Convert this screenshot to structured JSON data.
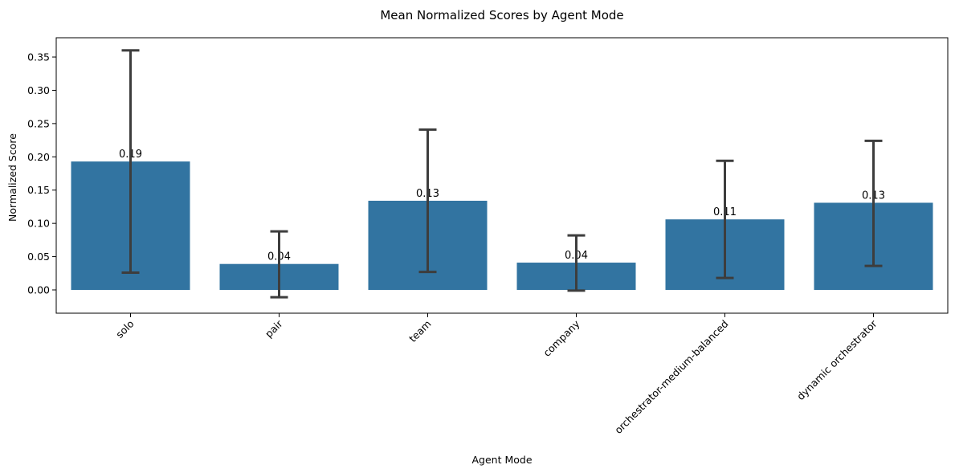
{
  "chart_data": {
    "type": "bar",
    "title": "Mean Normalized Scores by Agent Mode",
    "xlabel": "Agent Mode",
    "ylabel": "Normalized Score",
    "categories": [
      "solo",
      "pair",
      "team",
      "company",
      "orchestrator-medium-balanced",
      "dynamic orchestrator"
    ],
    "values": [
      0.193,
      0.039,
      0.134,
      0.041,
      0.106,
      0.131
    ],
    "value_labels": [
      "0.19",
      "0.04",
      "0.13",
      "0.04",
      "0.11",
      "0.13"
    ],
    "error_low": [
      0.026,
      -0.011,
      0.027,
      -0.001,
      0.018,
      0.036
    ],
    "error_high": [
      0.36,
      0.088,
      0.241,
      0.082,
      0.194,
      0.224
    ],
    "ylim": [
      -0.035,
      0.379
    ],
    "yticks": [
      0.0,
      0.05,
      0.1,
      0.15,
      0.2,
      0.25,
      0.3,
      0.35
    ],
    "ytick_labels": [
      "0.00",
      "0.05",
      "0.10",
      "0.15",
      "0.20",
      "0.25",
      "0.30",
      "0.35"
    ],
    "x_tick_rotation": 45,
    "grid": false,
    "legend": "none",
    "colors": {
      "bar": "#3274a1",
      "errorbar": "#3d3d3d",
      "axes": "#000000"
    }
  }
}
